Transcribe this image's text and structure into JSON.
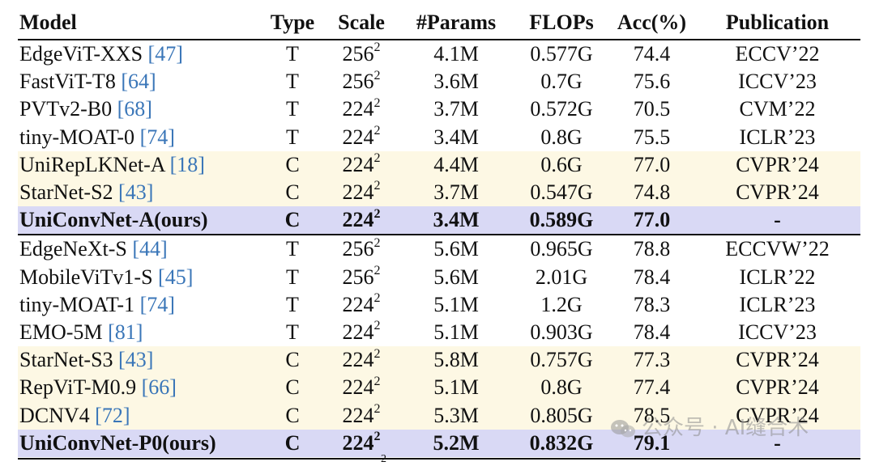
{
  "headers": [
    "Model",
    "Type",
    "Scale",
    "#Params",
    "FLOPs",
    "Acc(%)",
    "Publication"
  ],
  "rows": [
    {
      "model": "EdgeViT-XXS",
      "ref": "[47]",
      "type": "T",
      "scale": "256",
      "params": "4.1M",
      "flops": "0.577G",
      "acc": "74.4",
      "pub": "ECCV’22"
    },
    {
      "model": "FastViT-T8",
      "ref": "[64]",
      "type": "T",
      "scale": "256",
      "params": "3.6M",
      "flops": "0.7G",
      "acc": "75.6",
      "pub": "ICCV’23"
    },
    {
      "model": "PVTv2-B0",
      "ref": "[68]",
      "type": "T",
      "scale": "224",
      "params": "3.7M",
      "flops": "0.572G",
      "acc": "70.5",
      "pub": "CVM’22"
    },
    {
      "model": "tiny-MOAT-0",
      "ref": "[74]",
      "type": "T",
      "scale": "224",
      "params": "3.4M",
      "flops": "0.8G",
      "acc": "75.5",
      "pub": "ICLR’23"
    },
    {
      "model": "UniRepLKNet-A",
      "ref": "[18]",
      "type": "C",
      "scale": "224",
      "params": "4.4M",
      "flops": "0.6G",
      "acc": "77.0",
      "pub": "CVPR’24"
    },
    {
      "model": "StarNet-S2",
      "ref": "[43]",
      "type": "C",
      "scale": "224",
      "params": "3.7M",
      "flops": "0.547G",
      "acc": "74.8",
      "pub": "CVPR’24"
    },
    {
      "model": "UniConvNet-A(ours)",
      "ref": "",
      "type": "C",
      "scale": "224",
      "params": "3.4M",
      "flops": "0.589G",
      "acc": "77.0",
      "pub": "-"
    },
    {
      "model": "EdgeNeXt-S",
      "ref": "[44]",
      "type": "T",
      "scale": "256",
      "params": "5.6M",
      "flops": "0.965G",
      "acc": "78.8",
      "pub": "ECCVW’22"
    },
    {
      "model": "MobileViTv1-S",
      "ref": "[45]",
      "type": "T",
      "scale": "256",
      "params": "5.6M",
      "flops": "2.01G",
      "acc": "78.4",
      "pub": "ICLR’22"
    },
    {
      "model": "tiny-MOAT-1",
      "ref": "[74]",
      "type": "T",
      "scale": "224",
      "params": "5.1M",
      "flops": "1.2G",
      "acc": "78.3",
      "pub": "ICLR’23"
    },
    {
      "model": "EMO-5M",
      "ref": "[81]",
      "type": "T",
      "scale": "224",
      "params": "5.1M",
      "flops": "0.903G",
      "acc": "78.4",
      "pub": "ICCV’23"
    },
    {
      "model": "StarNet-S3",
      "ref": "[43]",
      "type": "C",
      "scale": "224",
      "params": "5.8M",
      "flops": "0.757G",
      "acc": "77.3",
      "pub": "CVPR’24"
    },
    {
      "model": "RepViT-M0.9",
      "ref": "[66]",
      "type": "C",
      "scale": "224",
      "params": "5.1M",
      "flops": "0.8G",
      "acc": "77.4",
      "pub": "CVPR’24"
    },
    {
      "model": "DCNV4",
      "ref": "[72]",
      "type": "C",
      "scale": "224",
      "params": "5.3M",
      "flops": "0.805G",
      "acc": "78.5",
      "pub": "CVPR’24"
    },
    {
      "model": "UniConvNet-P0(ours)",
      "ref": "",
      "type": "C",
      "scale": "224",
      "params": "5.2M",
      "flops": "0.832G",
      "acc": "79.1",
      "pub": "-"
    }
  ],
  "scale_exponent": "2",
  "watermark": "公众号 · AI缝合术"
}
